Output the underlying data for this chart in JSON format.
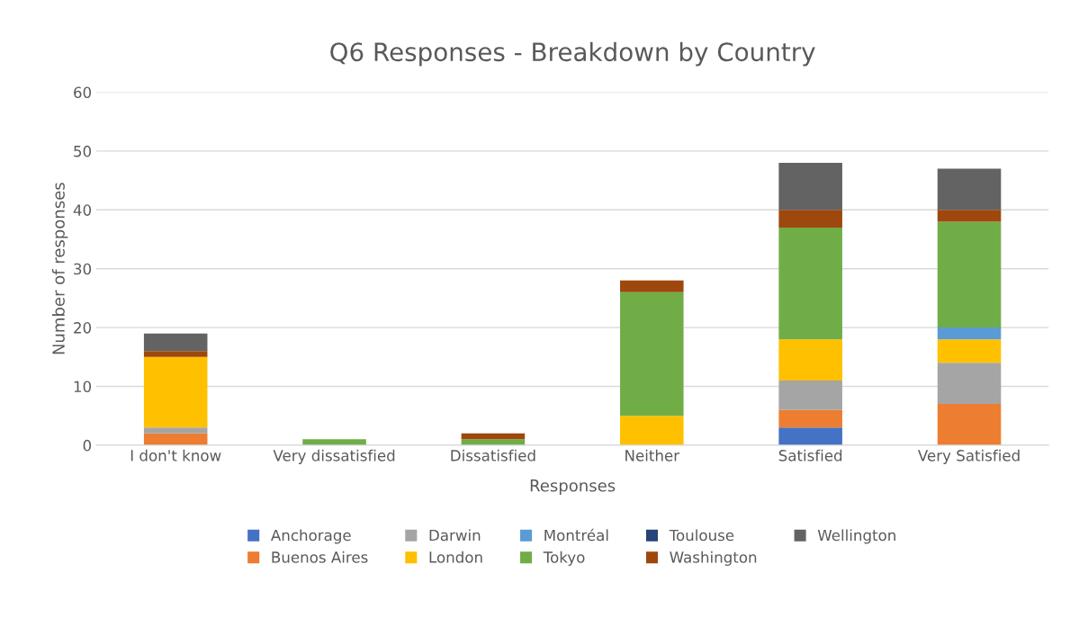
{
  "chart_data": {
    "type": "bar",
    "stacked": true,
    "title": "Q6 Responses - Breakdown by Country",
    "xlabel": "Responses",
    "ylabel": "Number of responses",
    "categories": [
      "I don't know",
      "Very dissatisfied",
      "Dissatisfied",
      "Neither",
      "Satisfied",
      "Very Satisfied"
    ],
    "ylim": [
      0,
      60
    ],
    "yticks": [
      0,
      10,
      20,
      30,
      40,
      50,
      60
    ],
    "grid": "y",
    "legend": "bottom",
    "series": [
      {
        "name": "Anchorage",
        "color": "#4472c4",
        "values": [
          0,
          0,
          0,
          0,
          3,
          0
        ]
      },
      {
        "name": "Buenos Aires",
        "color": "#ed7d31",
        "values": [
          2,
          0,
          0,
          0,
          3,
          7
        ]
      },
      {
        "name": "Darwin",
        "color": "#a5a5a5",
        "values": [
          1,
          0,
          0,
          0,
          5,
          7
        ]
      },
      {
        "name": "London",
        "color": "#ffc000",
        "values": [
          12,
          0,
          0,
          5,
          7,
          4
        ]
      },
      {
        "name": "Montréal",
        "color": "#5b9bd5",
        "values": [
          0,
          0,
          0,
          0,
          0,
          2
        ]
      },
      {
        "name": "Tokyo",
        "color": "#70ad47",
        "values": [
          0,
          1,
          1,
          21,
          19,
          18
        ]
      },
      {
        "name": "Toulouse",
        "color": "#264478",
        "values": [
          0,
          0,
          0,
          0,
          0,
          0
        ]
      },
      {
        "name": "Washington",
        "color": "#9e480e",
        "values": [
          1,
          0,
          1,
          2,
          3,
          2
        ]
      },
      {
        "name": "Wellington",
        "color": "#636363",
        "values": [
          3,
          0,
          0,
          0,
          8,
          7
        ]
      }
    ]
  }
}
